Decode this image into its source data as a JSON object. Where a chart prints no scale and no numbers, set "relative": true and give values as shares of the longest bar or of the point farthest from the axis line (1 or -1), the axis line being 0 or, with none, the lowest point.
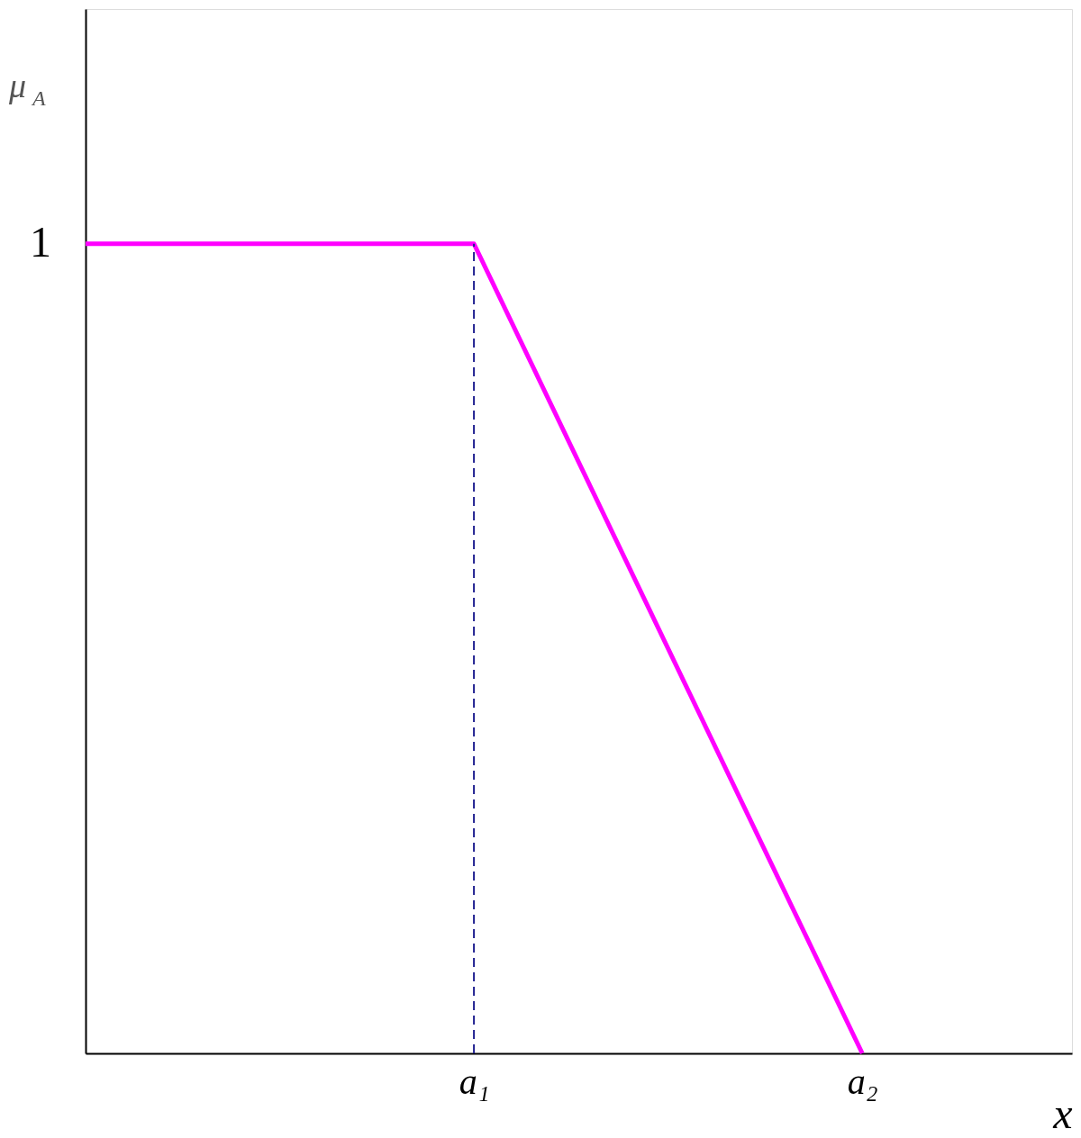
{
  "chart_data": {
    "type": "line",
    "relative": true,
    "xlabel": "x",
    "ylabel": "μ$_{A}$",
    "categories": [
      null,
      "a₁",
      "a₂"
    ],
    "annotations": [
      "1"
    ],
    "ref_lines": [
      {
        "axis": "x",
        "value": "a₁",
        "color": "#1f1f8f",
        "line_style": "dashed"
      }
    ],
    "series": [
      {
        "color": "#ff00ff",
        "values": [
          1,
          1,
          0
        ],
        "line_style": "solid"
      }
    ]
  }
}
